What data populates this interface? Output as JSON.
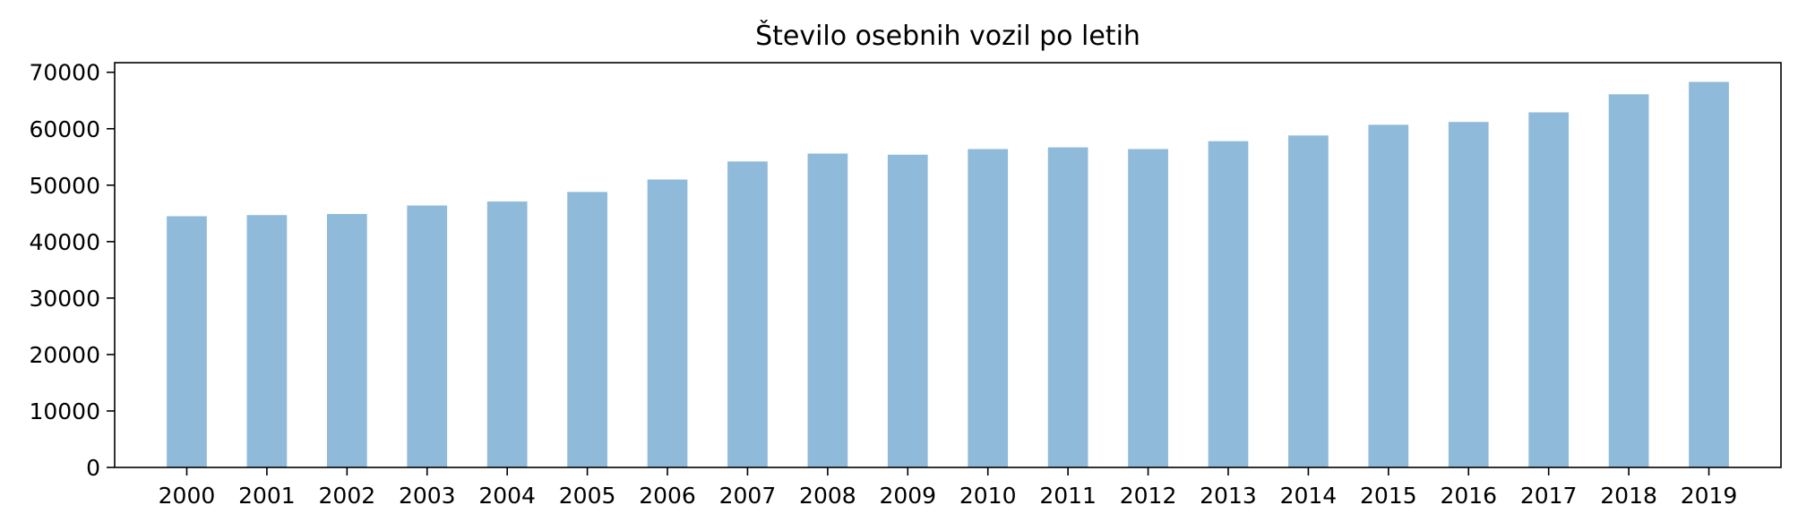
{
  "chart_data": {
    "type": "bar",
    "title": "Število osebnih vozil po letih",
    "xlabel": "",
    "ylabel": "",
    "categories": [
      "2000",
      "2001",
      "2002",
      "2003",
      "2004",
      "2005",
      "2006",
      "2007",
      "2008",
      "2009",
      "2010",
      "2011",
      "2012",
      "2013",
      "2014",
      "2015",
      "2016",
      "2017",
      "2018",
      "2019"
    ],
    "values": [
      44500,
      44700,
      44900,
      46400,
      47100,
      48800,
      51000,
      54200,
      55600,
      55400,
      56400,
      56700,
      56400,
      57800,
      58800,
      60700,
      61200,
      62900,
      66100,
      68300
    ],
    "ylim": [
      0,
      71700
    ],
    "yticks": [
      0,
      10000,
      20000,
      30000,
      40000,
      50000,
      60000,
      70000
    ],
    "ytick_labels": [
      "0",
      "10000",
      "20000",
      "30000",
      "40000",
      "50000",
      "60000",
      "70000"
    ],
    "bar_color": "#8fbad9",
    "grid": false,
    "legend": "none"
  }
}
